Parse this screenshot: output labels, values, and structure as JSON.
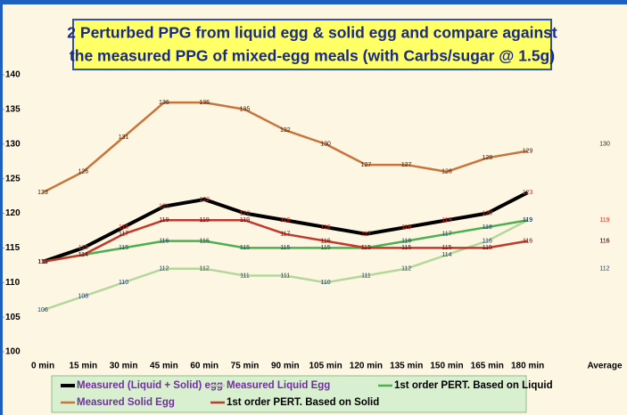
{
  "chart_data": {
    "type": "line",
    "title": [
      "2 Perturbed PPG from liquid egg & solid egg and compare against",
      "the measured PPG of mixed-egg meals (with Carbs/sugar @ 1.5g)"
    ],
    "categories": [
      "0 min",
      "15 min",
      "30 min",
      "45 min",
      "60 min",
      "75 min",
      "90 min",
      "105 min",
      "120 min",
      "135 min",
      "150 min",
      "165 min",
      "180 min"
    ],
    "average_label": "Average",
    "ylim": [
      100,
      140
    ],
    "yticks": [
      100,
      105,
      110,
      115,
      120,
      125,
      130,
      135,
      140
    ],
    "series": [
      {
        "name": "Measured (Liquid + Solid) egg",
        "color": "#000000",
        "label_color": "#e03020",
        "legend_color": "#7030a0",
        "width": 4,
        "values": [
          113,
          115,
          118,
          121,
          122,
          120,
          119,
          118,
          117,
          118,
          119,
          120,
          123
        ],
        "average": 119
      },
      {
        "name": "Measured Liquid Egg",
        "color": "#b4d79a",
        "label_color": "#1f3a7a",
        "legend_color": "#7030a0",
        "width": 2.5,
        "values": [
          106,
          108,
          110,
          112,
          112,
          111,
          111,
          110,
          111,
          112,
          114,
          116,
          119
        ],
        "average": 112
      },
      {
        "name": "1st order PERT. Based on Liquid",
        "color": "#4caf50",
        "label_color": "#1f3a5a",
        "legend_color": "#000000",
        "width": 2.5,
        "values": [
          113,
          114,
          115,
          116,
          116,
          115,
          115,
          115,
          115,
          116,
          117,
          118,
          119
        ],
        "average": 116
      },
      {
        "name": "Measured Solid Egg",
        "color": "#c8743a",
        "label_color": "#3a2010",
        "legend_color": "#7030a0",
        "width": 2.5,
        "values": [
          123,
          126,
          131,
          136,
          136,
          135,
          132,
          130,
          127,
          127,
          126,
          128,
          129
        ],
        "average": 130
      },
      {
        "name": "1st order PERT. Based on Solid",
        "color": "#c0392b",
        "label_color": "#5a1010",
        "legend_color": "#000000",
        "width": 2.5,
        "values": [
          113,
          114,
          117,
          119,
          119,
          119,
          117,
          116,
          115,
          115,
          115,
          115,
          116
        ],
        "average": 116
      }
    ]
  }
}
